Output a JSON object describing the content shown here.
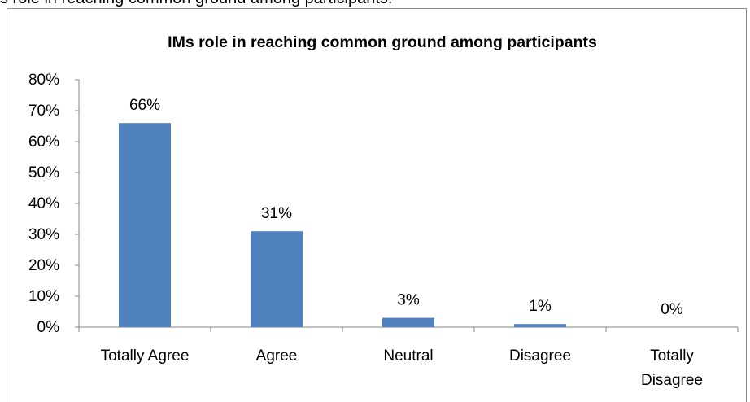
{
  "caption_fragment": "s role in reaching common ground among participants.",
  "chart_data": {
    "type": "bar",
    "title": "IMs role in reaching common ground among participants",
    "categories": [
      "Totally Agree",
      "Agree",
      "Neutral",
      "Disagree",
      "Totally Disagree"
    ],
    "category_lines": [
      [
        "Totally Agree"
      ],
      [
        "Agree"
      ],
      [
        "Neutral"
      ],
      [
        "Disagree"
      ],
      [
        "Totally",
        "Disagree"
      ]
    ],
    "values": [
      0.66,
      0.31,
      0.03,
      0.01,
      0.0
    ],
    "data_labels": [
      "66%",
      "31%",
      "3%",
      "1%",
      "0%"
    ],
    "y_ticks": [
      "0%",
      "10%",
      "20%",
      "30%",
      "40%",
      "50%",
      "60%",
      "70%",
      "80%"
    ],
    "ylim": [
      0,
      0.8
    ],
    "grid": false,
    "legend": "none",
    "bar_color": "#4f81bd"
  }
}
